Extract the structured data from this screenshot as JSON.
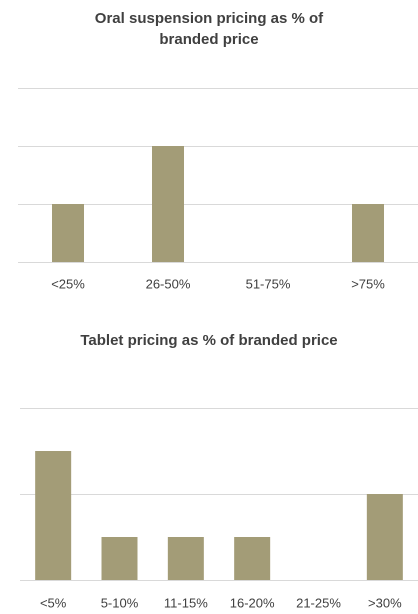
{
  "chart_data": [
    {
      "type": "bar",
      "title": "Oral suspension pricing as % of branded price",
      "categories": [
        "<25%",
        "26-50%",
        "51-75%",
        ">75%"
      ],
      "values": [
        1,
        2,
        0,
        1
      ],
      "color": "#a39c77",
      "ylim": [
        0,
        3
      ],
      "yticks": [
        0,
        1,
        2,
        3
      ],
      "grid": true
    },
    {
      "type": "bar",
      "title": "Tablet pricing as % of branded price",
      "categories": [
        "<5%",
        "5-10%",
        "11-15%",
        "16-20%",
        "21-25%",
        ">30%"
      ],
      "values": [
        3,
        1,
        1,
        1,
        0,
        2
      ],
      "color": "#a39c77",
      "ylim": [
        0,
        4
      ],
      "yticks": [
        0,
        2,
        4
      ],
      "grid": true
    }
  ]
}
